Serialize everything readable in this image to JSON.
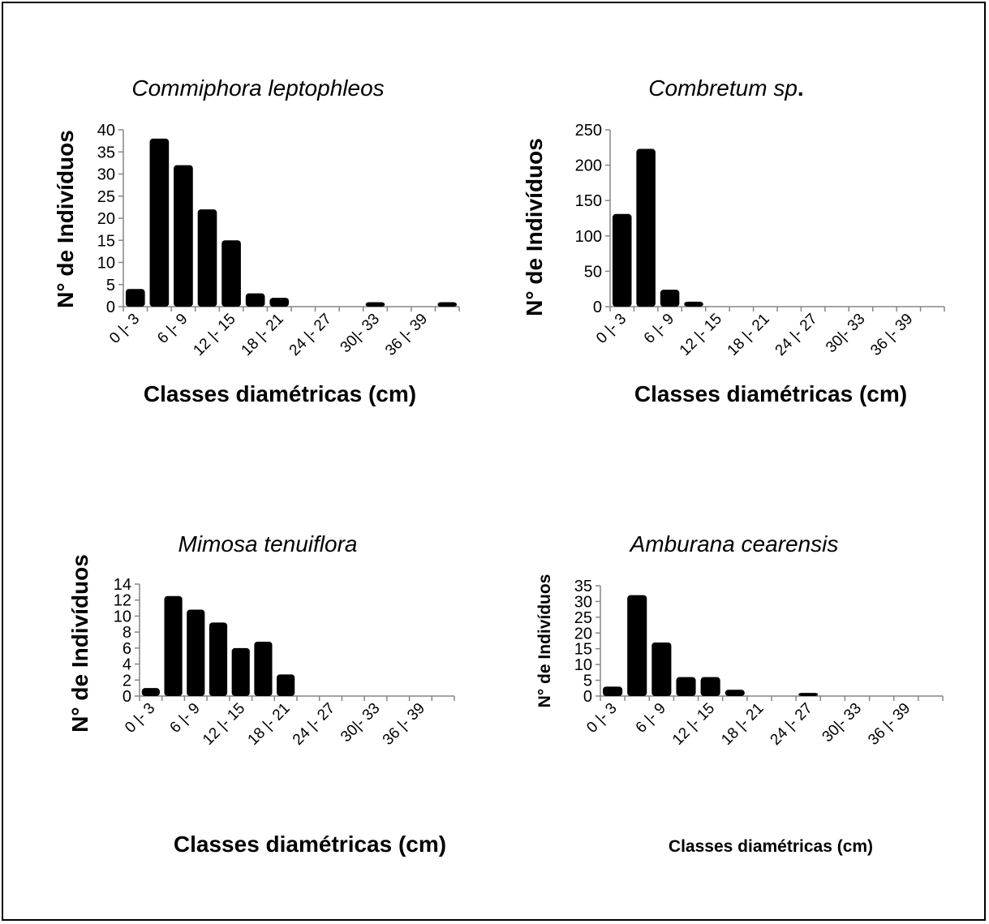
{
  "chart_data": [
    {
      "type": "bar",
      "title": "Commiphora leptophleos",
      "title_suffix": "",
      "xlabel": "Classes diamétricas (cm)",
      "ylabel": "N° de Indivíduos",
      "ylim": [
        0,
        40
      ],
      "yticks": [
        "0",
        "5",
        "10",
        "15",
        "20",
        "25",
        "30",
        "35",
        "40"
      ],
      "tick_labels": [
        "0 |- 3",
        "6 |- 9",
        "12 |- 15",
        "18 |- 21",
        "24 |- 27",
        "30|- 33",
        "36 |- 39"
      ],
      "values": [
        4,
        38,
        32,
        22,
        15,
        3,
        2,
        0,
        0,
        0,
        1,
        0,
        0,
        1
      ],
      "color": "#000000"
    },
    {
      "type": "bar",
      "title": "Combretum sp",
      "title_suffix": ".",
      "xlabel": "Classes diamétricas (cm)",
      "ylabel": "N° de Indivíduos",
      "ylim": [
        0,
        250
      ],
      "yticks": [
        "0",
        "50",
        "100",
        "150",
        "200",
        "250"
      ],
      "tick_labels": [
        "0 |- 3",
        "6 |- 9",
        "12 |- 15",
        "18 |- 21",
        "24 |- 27",
        "30|- 33",
        "36 |- 39"
      ],
      "values": [
        131,
        223,
        24,
        7,
        0,
        0,
        0,
        0,
        0,
        0,
        0,
        0,
        0,
        0
      ],
      "color": "#000000"
    },
    {
      "type": "bar",
      "title": "Mimosa tenuiflora",
      "title_suffix": "",
      "xlabel": "Classes diamétricas (cm)",
      "ylabel": "N° de Indivíduos",
      "ylim": [
        0,
        14
      ],
      "yticks": [
        "0",
        "2",
        "4",
        "6",
        "8",
        "10",
        "12",
        "14"
      ],
      "tick_labels": [
        "0 |- 3",
        "6 |- 9",
        "12 |- 15",
        "18 |- 21",
        "24 |- 27",
        "30|- 33",
        "36 |- 39"
      ],
      "values": [
        1,
        12.5,
        10.8,
        9.2,
        6,
        6.8,
        2.7,
        0,
        0,
        0,
        0,
        0,
        0,
        0
      ],
      "color": "#000000"
    },
    {
      "type": "bar",
      "title": "Amburana cearensis",
      "title_suffix": "",
      "xlabel": "Classes diamétricas (cm)",
      "ylabel": "N° de Indivíduos",
      "ylim": [
        0,
        35
      ],
      "yticks": [
        "0",
        "5",
        "10",
        "15",
        "20",
        "25",
        "30",
        "35"
      ],
      "tick_labels": [
        "0 |- 3",
        "6 |- 9",
        "12 |- 15",
        "18 |- 21",
        "24 |- 27",
        "30|- 33",
        "36 |- 39"
      ],
      "values": [
        3,
        32,
        17,
        6,
        6,
        2,
        0,
        0,
        1,
        0,
        0,
        0,
        0,
        0
      ],
      "color": "#000000"
    }
  ]
}
